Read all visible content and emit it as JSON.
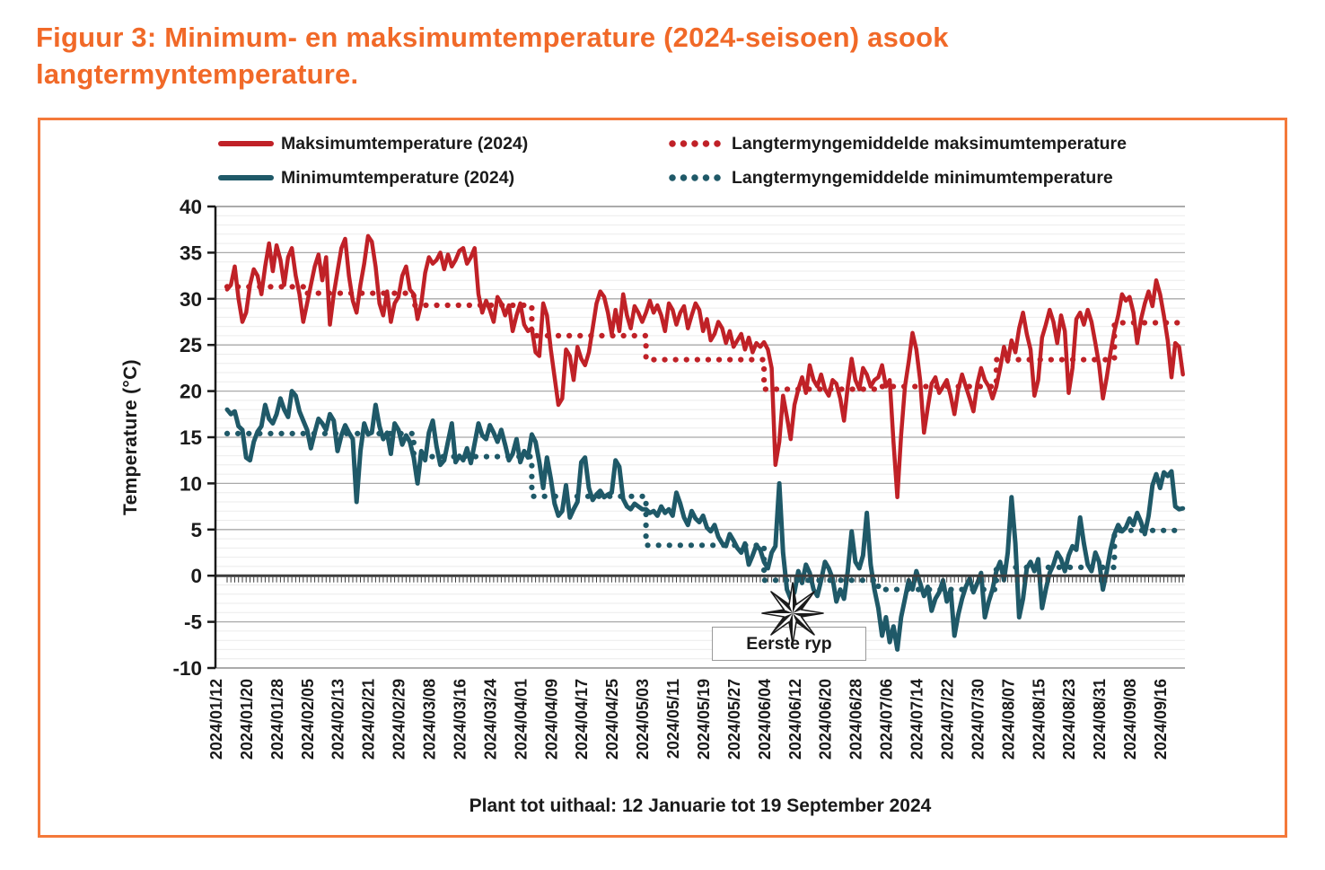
{
  "title": "Figuur 3: Minimum- en maksimumtemperature (2024-seisoen) asook langtermyntemperature.",
  "legend": [
    {
      "label": "Maksimumtemperature (2024)",
      "style": "solid",
      "series": "max"
    },
    {
      "label": "Minimumtemperature (2024)",
      "style": "solid",
      "series": "min"
    },
    {
      "label": "Langtermyngemiddelde maksimumtemperature",
      "style": "dotted",
      "series": "max"
    },
    {
      "label": "Langtermyngemiddelde minimumtemperature",
      "style": "dotted",
      "series": "min"
    }
  ],
  "annotation": {
    "label": "Eerste ryp"
  },
  "colors": {
    "max_line": "#c02127",
    "min_line": "#1f5968",
    "title_text": "#f16928",
    "frame_border": "#f4793a",
    "grid_major": "#a9a9a9",
    "grid_edge": "#8f8f8f",
    "grid_minor": "#ebebeb",
    "axis": "#1a1a1a",
    "zero_axis": "#3d3d3d",
    "annotation_border": "#9a9a9a",
    "text": "#1a1a1a"
  },
  "chart_data": {
    "type": "line",
    "xlabel": "Plant tot uithaal: 12 Januarie tot 19 September 2024",
    "ylabel": "Temperature (°C)",
    "ylim": [
      -10,
      40
    ],
    "grid": "on",
    "legend_position": "top",
    "y_ticks": [
      40,
      35,
      30,
      25,
      20,
      15,
      10,
      5,
      0,
      -5,
      -10
    ],
    "x_tick_labels": [
      "2024/01/12",
      "2024/01/20",
      "2024/01/28",
      "2024/02/05",
      "2024/02/13",
      "2024/02/21",
      "2024/02/29",
      "2024/03/08",
      "2024/03/16",
      "2024/03/24",
      "2024/04/01",
      "2024/04/09",
      "2024/04/17",
      "2024/04/25",
      "2024/05/03",
      "2024/05/11",
      "2024/05/19",
      "2024/05/27",
      "2024/06/04",
      "2024/06/12",
      "2024/06/20",
      "2024/06/28",
      "2024/07/06",
      "2024/07/14",
      "2024/07/22",
      "2024/07/30",
      "2024/08/07",
      "2024/08/15",
      "2024/08/23",
      "2024/08/31",
      "2024/09/08",
      "2024/09/16"
    ],
    "x_tick_day_interval": 8,
    "start_date": "2024/01/12",
    "end_date": "2024/09/19",
    "month_start_index": [
      0,
      20,
      49,
      80,
      110,
      141,
      171,
      202,
      233
    ],
    "months": [
      "Jan",
      "Feb",
      "Mar",
      "Apr",
      "Mei",
      "Jun",
      "Jul",
      "Aug",
      "Sep"
    ],
    "long_term_avg_max": [
      31.3,
      30.6,
      29.3,
      26.0,
      23.4,
      20.2,
      20.5,
      23.4,
      27.4
    ],
    "long_term_avg_min": [
      15.4,
      15.4,
      12.9,
      8.6,
      3.3,
      -0.5,
      -1.5,
      0.9,
      4.9
    ],
    "series": [
      {
        "name": "Maksimumtemperature (2024)",
        "values": [
          31,
          31.5,
          33.5,
          30,
          27.5,
          28.5,
          31.5,
          33.2,
          32.5,
          30.5,
          33.5,
          36,
          33,
          35.8,
          34.2,
          31.5,
          34.5,
          35.5,
          32.5,
          30.5,
          27.5,
          29.5,
          31.5,
          33.5,
          34.8,
          32,
          34.5,
          27.2,
          30.5,
          33,
          35.5,
          36.5,
          32.5,
          29.8,
          28.5,
          31.5,
          33.8,
          36.8,
          36.2,
          33.5,
          29.5,
          28.2,
          30.8,
          27.5,
          29.5,
          30.2,
          32.5,
          33.5,
          31,
          30.5,
          27.8,
          29.5,
          32.8,
          34.5,
          33.8,
          34.2,
          35,
          33.2,
          34.8,
          33.5,
          34.2,
          35.2,
          35.5,
          33.8,
          34.5,
          35.5,
          30.5,
          28.5,
          29.8,
          28.8,
          27.5,
          30.2,
          29.5,
          28.2,
          29.3,
          26.5,
          28.2,
          29.5,
          27.2,
          26.5,
          26.8,
          24.2,
          23.8,
          29.5,
          28.2,
          24.5,
          21.5,
          18.5,
          19.2,
          24.5,
          23.8,
          21.2,
          24.8,
          23.5,
          22.8,
          24.2,
          26.8,
          29.5,
          30.8,
          30.2,
          28.5,
          26.2,
          28.8,
          26.5,
          30.5,
          28.2,
          26.8,
          29.2,
          28.5,
          27.5,
          28.5,
          29.8,
          28.5,
          29.3,
          28.2,
          26.5,
          29.5,
          28.8,
          27.2,
          28.5,
          29.2,
          26.8,
          28.2,
          29.5,
          28.8,
          26.5,
          27.8,
          25.5,
          26.2,
          27.5,
          26.8,
          25.2,
          26.5,
          24.8,
          25.5,
          26.2,
          24.5,
          25.8,
          24.2,
          25.2,
          24.8,
          25.3,
          24.5,
          22.5,
          12,
          14.5,
          19.5,
          17.2,
          14.8,
          18.5,
          20.2,
          21.5,
          19.8,
          22.8,
          21.2,
          20.5,
          21.8,
          20.2,
          19.5,
          21.2,
          20.8,
          19.2,
          16.8,
          20.5,
          23.5,
          21.2,
          20.2,
          22.5,
          21.8,
          20.5,
          21.2,
          21.5,
          22.8,
          20.5,
          21.2,
          14.5,
          8.5,
          15.2,
          20.5,
          23.2,
          26.3,
          24.5,
          21.2,
          15.5,
          18.2,
          20.8,
          21.5,
          19.8,
          20.5,
          21.2,
          19.5,
          17.5,
          20.2,
          21.8,
          20.5,
          19.2,
          17.8,
          20.8,
          22.5,
          21.2,
          20.5,
          19.2,
          20.5,
          22.5,
          24.8,
          23.2,
          25.5,
          24.2,
          26.8,
          28.5,
          26.2,
          24.5,
          19.5,
          21.2,
          25.8,
          27.2,
          28.8,
          27.5,
          25.2,
          28.2,
          26.5,
          19.8,
          22.5,
          27.8,
          28.5,
          27.2,
          28.8,
          27.5,
          25.2,
          22.8,
          19.2,
          21.5,
          24.2,
          26.5,
          28.2,
          30.5,
          29.8,
          30.2,
          28.5,
          25.2,
          27.8,
          29.5,
          30.8,
          29.2,
          32,
          30.5,
          28.2,
          25.5,
          21.5,
          25.2,
          24.8,
          21.8
        ]
      },
      {
        "name": "Minimumtemperature (2024)",
        "values": [
          18,
          17.5,
          17.8,
          16.2,
          15.8,
          12.8,
          12.5,
          14.5,
          15.6,
          16.2,
          18.5,
          17,
          16.5,
          17.5,
          19.2,
          18,
          17.2,
          20,
          19.5,
          17.8,
          16.8,
          15.8,
          13.8,
          15.5,
          17,
          16.5,
          15.8,
          17.5,
          16.8,
          13.5,
          15.2,
          16.3,
          15.5,
          14.8,
          8,
          13.5,
          16.5,
          15.3,
          15.5,
          18.5,
          16.2,
          14.8,
          15.5,
          13.2,
          16.5,
          15.8,
          14.2,
          15.2,
          14.5,
          12.8,
          10,
          13.5,
          12.5,
          15.5,
          16.8,
          14,
          12,
          12.5,
          14.5,
          16.5,
          12.3,
          13,
          12.5,
          13.8,
          12.2,
          14.3,
          16.5,
          15.2,
          14.8,
          16.3,
          15.5,
          14.5,
          15.8,
          14.2,
          12.5,
          13.2,
          14.8,
          12.3,
          13.5,
          12.8,
          15.3,
          14.5,
          12.3,
          9.5,
          12.8,
          10.5,
          7.8,
          6.5,
          7,
          9.8,
          6.3,
          7.2,
          8,
          12.3,
          12.8,
          9.5,
          8.2,
          8.8,
          9.2,
          8.5,
          8.8,
          9,
          12.5,
          11.8,
          8.3,
          7.5,
          7.2,
          7.8,
          7.5,
          7.2,
          7.2,
          6.8,
          7,
          6.5,
          7.5,
          6.8,
          7.2,
          6.5,
          9,
          7.8,
          6.3,
          5.5,
          7,
          6.2,
          5.8,
          6.5,
          5.2,
          4.8,
          5.5,
          4.2,
          3.5,
          3.2,
          4.5,
          3.8,
          3,
          2.5,
          3.5,
          1.2,
          2.2,
          3.3,
          2.8,
          1.5,
          0.8,
          2.5,
          3.2,
          10,
          2.5,
          -1.5,
          -2.5,
          -1.8,
          0.5,
          -0.8,
          1.2,
          0.3,
          -1.5,
          -2.2,
          -0.5,
          1.5,
          0.8,
          -0.3,
          -2.8,
          -1.5,
          -2.5,
          0.5,
          4.8,
          1.5,
          0.8,
          2.2,
          6.8,
          1.2,
          -1.5,
          -3.5,
          -6.5,
          -4.5,
          -7.2,
          -5.5,
          -8,
          -4.5,
          -2.5,
          -0.5,
          -1.5,
          0.5,
          -0.8,
          -2.2,
          -1.2,
          -3.8,
          -2.5,
          -1.8,
          -0.5,
          -2.8,
          -1.5,
          -6.5,
          -4.2,
          -2.5,
          -1.2,
          -0.3,
          -1.8,
          -0.8,
          0.3,
          -4.5,
          -2.8,
          -1.5,
          0.5,
          1.5,
          -0.5,
          2.5,
          8.5,
          3.5,
          -4.5,
          -2.5,
          0.8,
          1.5,
          0.5,
          1.8,
          -3.5,
          -1.5,
          0.3,
          1.2,
          2.5,
          1.8,
          0.5,
          2.2,
          3.2,
          2.8,
          6.3,
          3.5,
          1.2,
          0.5,
          2.5,
          1.5,
          -1.5,
          0.5,
          2.8,
          4.5,
          5.5,
          4.8,
          5.2,
          6.2,
          5.5,
          6.8,
          5.8,
          4.5,
          6.5,
          9.8,
          11,
          9.5,
          11.2,
          10.8,
          11.3,
          7.5,
          7.2,
          7.3
        ]
      }
    ],
    "annotation": {
      "label": "Eerste ryp",
      "day_index": 147,
      "value": -4
    }
  }
}
